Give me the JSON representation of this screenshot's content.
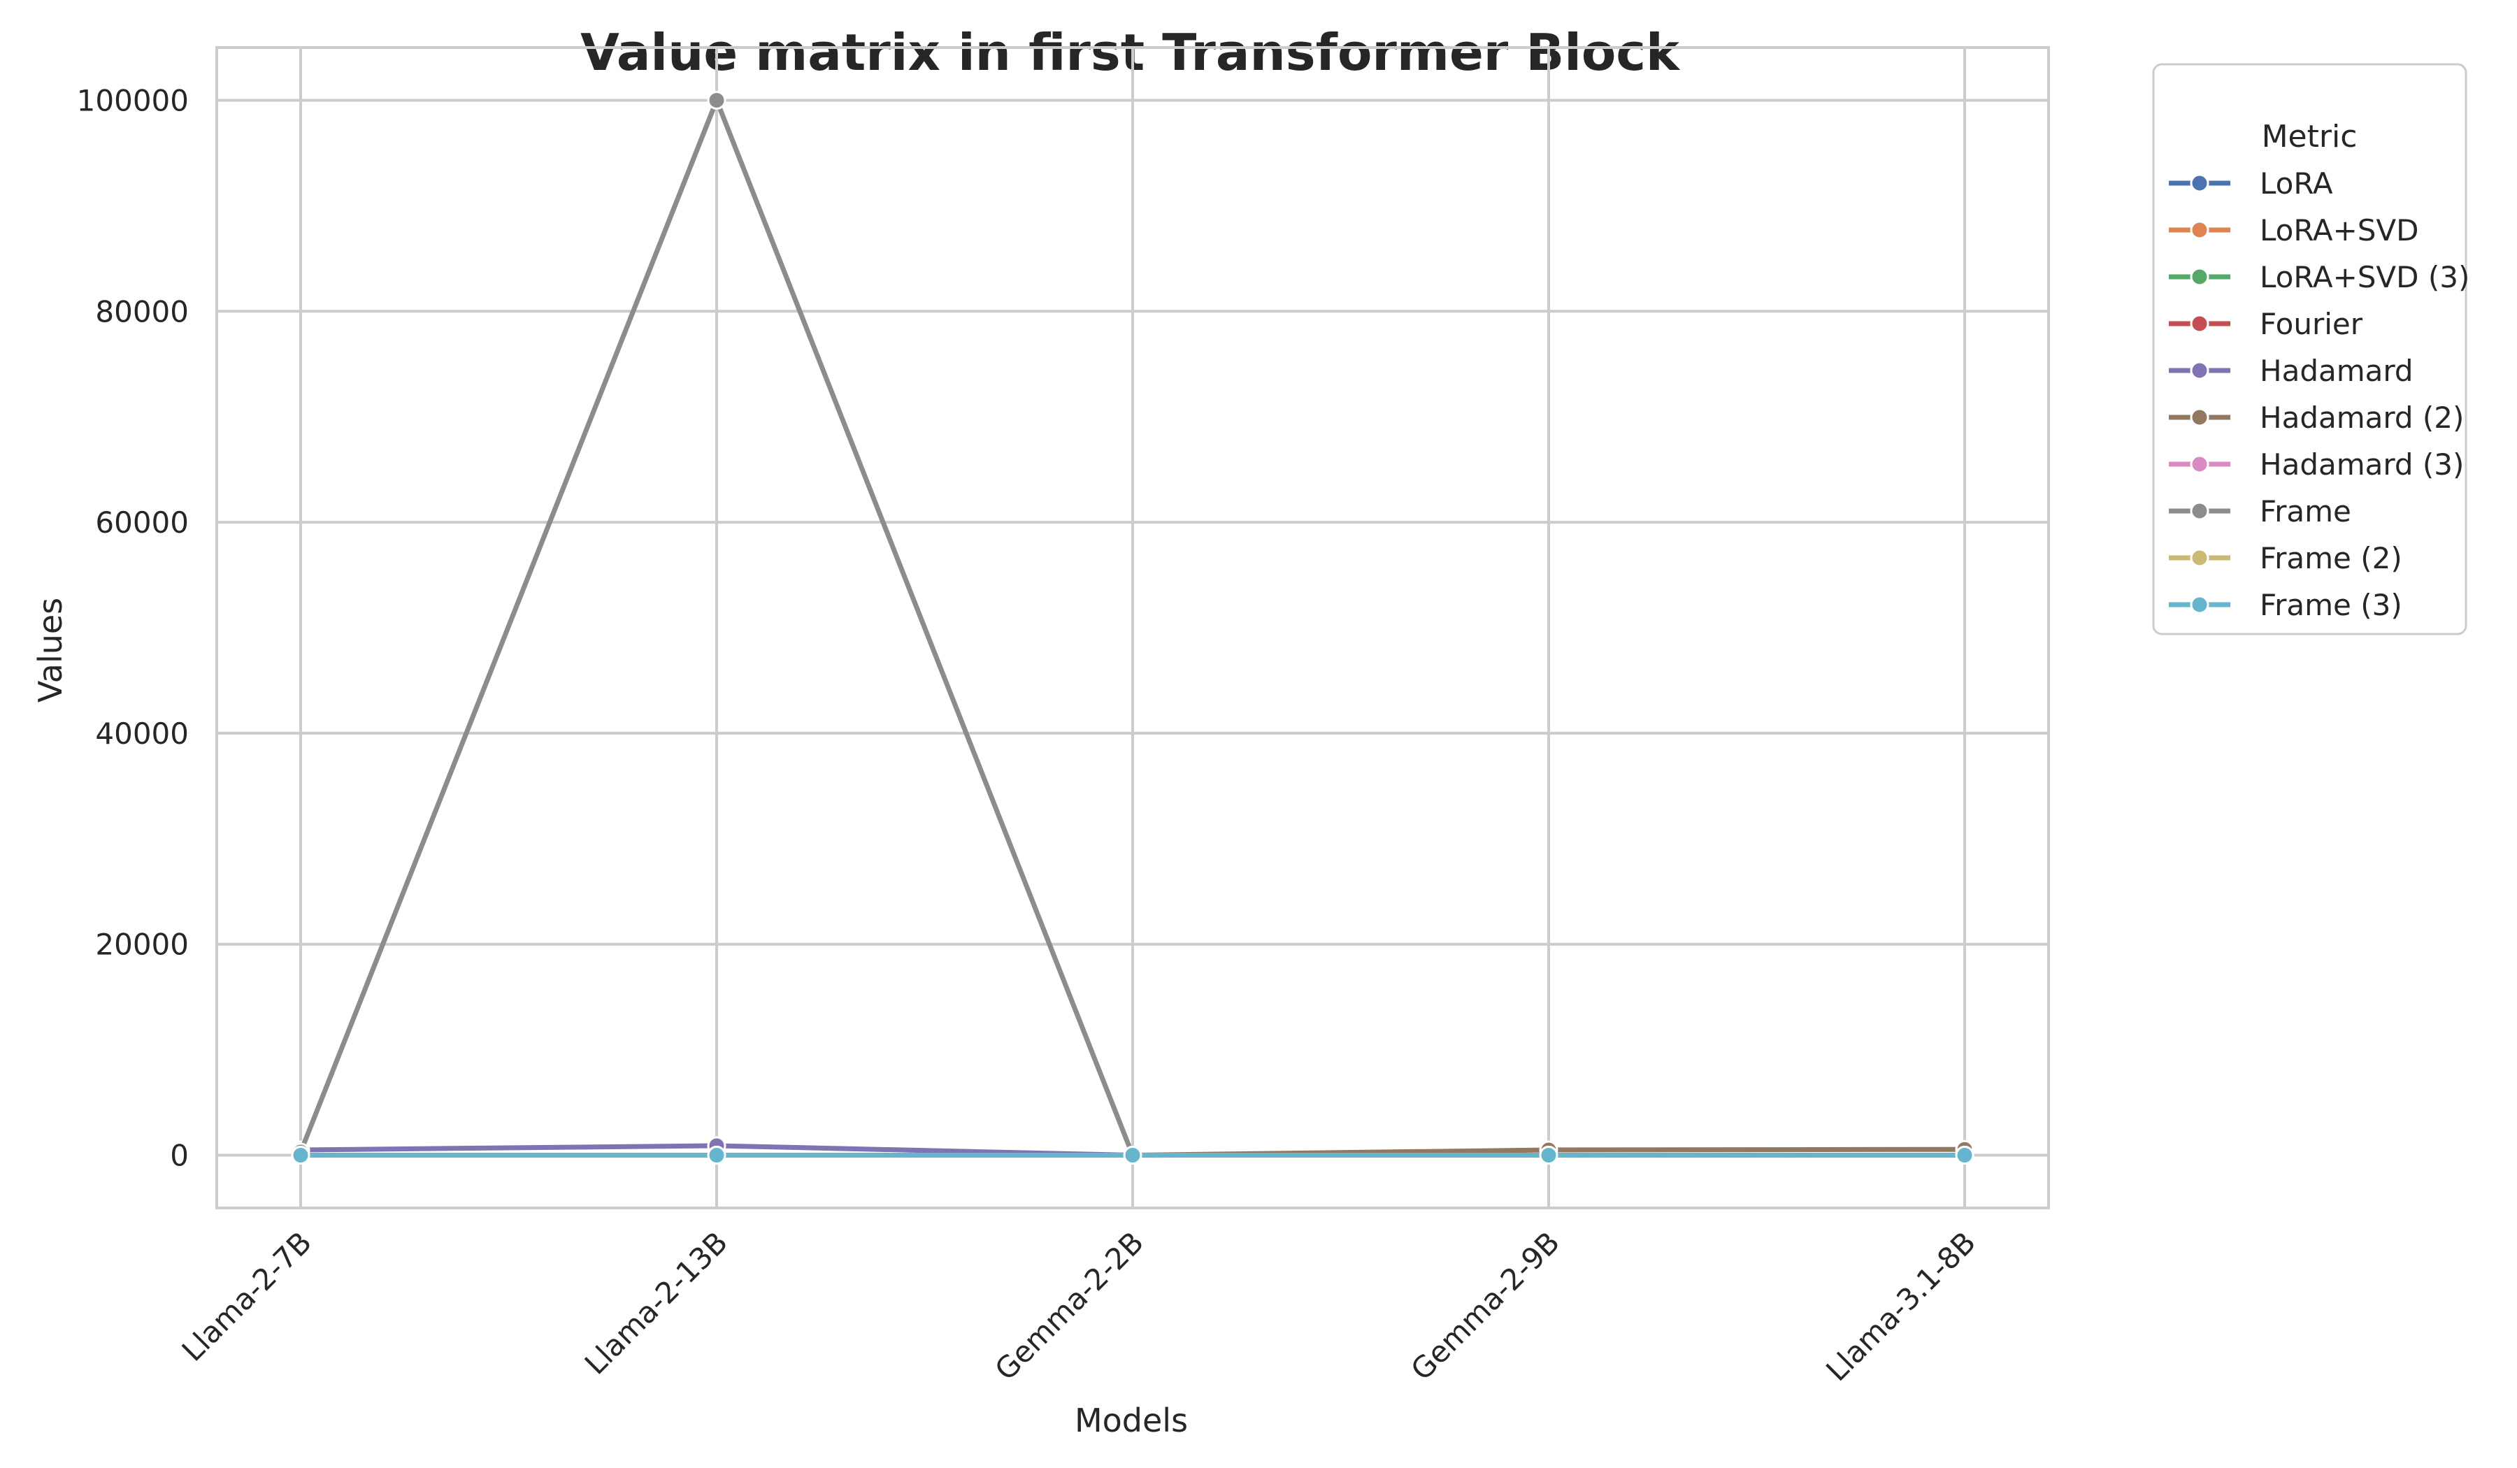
{
  "chart_data": {
    "type": "line",
    "title": "Value matrix in first Transformer Block",
    "xlabel": "Models",
    "ylabel": "Values",
    "categories": [
      "Llama-2-7B",
      "Llama-2-13B",
      "Gemma-2-2B",
      "Gemma-2-9B",
      "Llama-3.1-8B"
    ],
    "ylim": [
      -5000,
      105000
    ],
    "yticks": [
      0,
      20000,
      40000,
      60000,
      80000,
      100000
    ],
    "grid": true,
    "legend": {
      "title": "Metric",
      "placement": "outside top-right"
    },
    "series": [
      {
        "name": "LoRA",
        "color": "#4c72b0",
        "values": [
          0,
          0,
          0,
          0,
          0
        ]
      },
      {
        "name": "LoRA+SVD",
        "color": "#dd8452",
        "values": [
          0,
          0,
          0,
          0,
          0
        ]
      },
      {
        "name": "LoRA+SVD (3)",
        "color": "#55a868",
        "values": [
          0,
          0,
          0,
          0,
          0
        ]
      },
      {
        "name": "Fourier",
        "color": "#c44e52",
        "values": [
          0,
          0,
          0,
          0,
          0
        ]
      },
      {
        "name": "Hadamard",
        "color": "#8172b3",
        "values": [
          500,
          900,
          0,
          0,
          0
        ]
      },
      {
        "name": "Hadamard (2)",
        "color": "#937860",
        "values": [
          0,
          0,
          0,
          500,
          550
        ]
      },
      {
        "name": "Hadamard (3)",
        "color": "#da8bc3",
        "values": [
          0,
          0,
          0,
          0,
          0
        ]
      },
      {
        "name": "Frame",
        "color": "#8c8c8c",
        "values": [
          300,
          100000,
          0,
          0,
          0
        ]
      },
      {
        "name": "Frame (2)",
        "color": "#ccb974",
        "values": [
          0,
          0,
          0,
          0,
          0
        ]
      },
      {
        "name": "Frame (3)",
        "color": "#64b5cd",
        "values": [
          0,
          0,
          0,
          0,
          0
        ]
      }
    ]
  }
}
